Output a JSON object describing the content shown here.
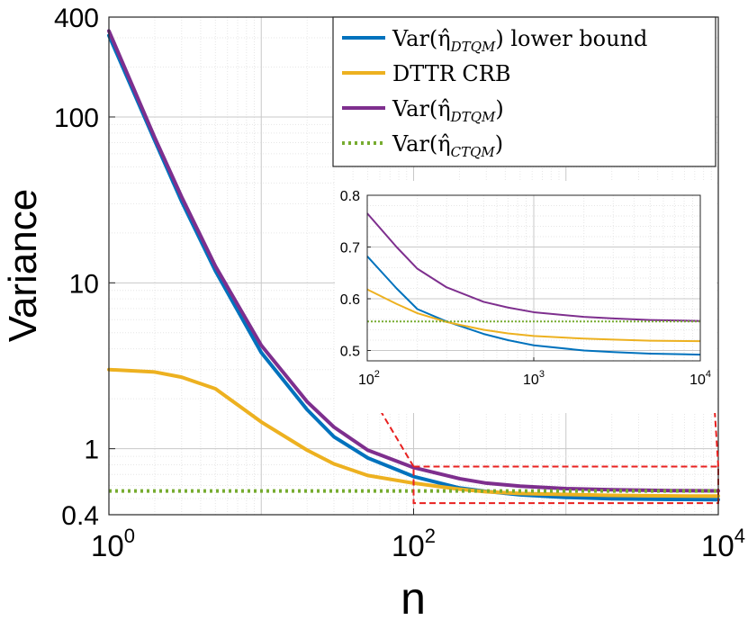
{
  "chart_data": [
    {
      "type": "line",
      "xscale": "log",
      "yscale": "log",
      "xlabel": "n",
      "ylabel": "Variance",
      "xlim": [
        1,
        10000
      ],
      "ylim": [
        0.4,
        400
      ],
      "grid": true,
      "legend_position": "top-right",
      "xticks": [
        {
          "value": 1,
          "base": "10",
          "exp": "0"
        },
        {
          "value": 100,
          "base": "10",
          "exp": "2"
        },
        {
          "value": 10000,
          "base": "10",
          "exp": "4"
        }
      ],
      "yticks": [
        {
          "value": 0.4,
          "label": "0.4"
        },
        {
          "value": 1,
          "label": "1"
        },
        {
          "value": 10,
          "label": "10"
        },
        {
          "value": 100,
          "label": "100"
        },
        {
          "value": 400,
          "label": "400"
        }
      ],
      "x": [
        1,
        2,
        3,
        5,
        10,
        20,
        30,
        50,
        100,
        200,
        300,
        500,
        1000,
        2000,
        5000,
        10000
      ],
      "series": [
        {
          "name": "Var(η̂_DTQM) lower bound",
          "label_main": "Var(η̂",
          "label_sub": "DTQM",
          "label_tail": ") lower bound",
          "color": "#0072BD",
          "style": "solid",
          "values": [
            310,
            72,
            31,
            11.8,
            3.8,
            1.72,
            1.18,
            0.88,
            0.68,
            0.58,
            0.553,
            0.527,
            0.509,
            0.499,
            0.495,
            0.493
          ]
        },
        {
          "name": "DTTR CRB",
          "label_main": "DTTR CRB",
          "label_sub": "",
          "label_tail": "",
          "color": "#EDB120",
          "style": "solid",
          "values": [
            3.0,
            2.9,
            2.7,
            2.3,
            1.45,
            0.98,
            0.81,
            0.69,
            0.62,
            0.57,
            0.55,
            0.537,
            0.53,
            0.523,
            0.519,
            0.518
          ]
        },
        {
          "name": "Var(η̂_DTQM)",
          "label_main": "Var(η̂",
          "label_sub": "DTQM",
          "label_tail": ")",
          "color": "#7E2F8E",
          "style": "solid",
          "values": [
            330,
            75,
            33,
            12.6,
            4.2,
            1.92,
            1.35,
            0.98,
            0.77,
            0.66,
            0.62,
            0.595,
            0.575,
            0.566,
            0.559,
            0.557
          ]
        },
        {
          "name": "Var(η̂_CTQM)",
          "label_main": "Var(η̂",
          "label_sub": "CTQM",
          "label_tail": ")",
          "color": "#77AC30",
          "style": "dotted",
          "values": [
            0.556,
            0.556,
            0.556,
            0.556,
            0.556,
            0.556,
            0.556,
            0.556,
            0.556,
            0.556,
            0.556,
            0.556,
            0.556,
            0.556,
            0.556,
            0.556
          ]
        }
      ]
    },
    {
      "type": "line",
      "role": "inset zoom",
      "xscale": "log",
      "yscale": "linear",
      "xlim": [
        100,
        10000
      ],
      "ylim": [
        0.48,
        0.8
      ],
      "grid": true,
      "xticks": [
        {
          "value": 100,
          "base": "10",
          "exp": "2"
        },
        {
          "value": 1000,
          "base": "10",
          "exp": "3"
        },
        {
          "value": 10000,
          "base": "10",
          "exp": "4"
        }
      ],
      "yticks": [
        {
          "value": 0.5,
          "label": "0.5"
        },
        {
          "value": 0.6,
          "label": "0.6"
        },
        {
          "value": 0.7,
          "label": "0.7"
        },
        {
          "value": 0.8,
          "label": "0.8"
        }
      ],
      "x": [
        100,
        150,
        200,
        300,
        500,
        700,
        1000,
        2000,
        3000,
        5000,
        10000
      ],
      "series": [
        {
          "name": "Var(η̂_DTQM) lower bound",
          "color": "#0072BD",
          "style": "solid",
          "values": [
            0.682,
            0.62,
            0.58,
            0.556,
            0.532,
            0.52,
            0.51,
            0.5,
            0.497,
            0.494,
            0.492
          ]
        },
        {
          "name": "DTTR CRB",
          "color": "#EDB120",
          "style": "solid",
          "values": [
            0.618,
            0.59,
            0.572,
            0.555,
            0.54,
            0.533,
            0.528,
            0.523,
            0.521,
            0.519,
            0.518
          ]
        },
        {
          "name": "Var(η̂_DTQM)",
          "color": "#7E2F8E",
          "style": "solid",
          "values": [
            0.765,
            0.7,
            0.658,
            0.622,
            0.594,
            0.583,
            0.574,
            0.565,
            0.562,
            0.559,
            0.557
          ]
        },
        {
          "name": "Var(η̂_CTQM)",
          "color": "#77AC30",
          "style": "dotted",
          "values": [
            0.556,
            0.556,
            0.556,
            0.556,
            0.556,
            0.556,
            0.556,
            0.556,
            0.556,
            0.556,
            0.556
          ]
        }
      ],
      "zoom_region": {
        "x": [
          100,
          10000
        ],
        "y": [
          0.47,
          0.78
        ]
      }
    }
  ]
}
